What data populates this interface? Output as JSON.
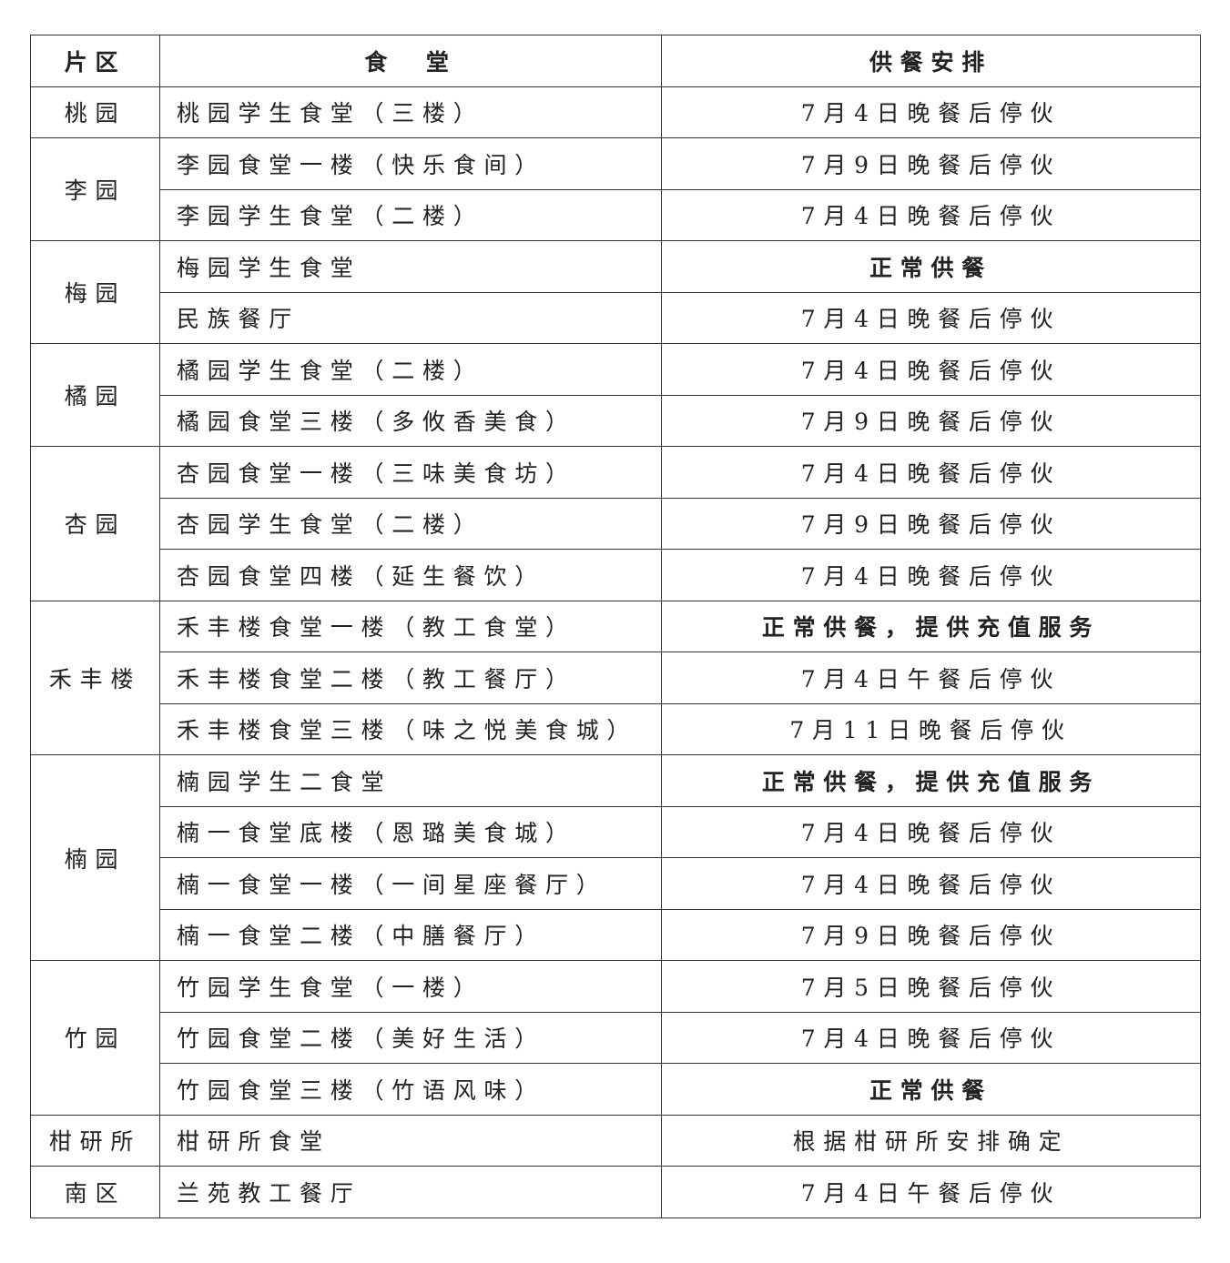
{
  "table": {
    "header": [
      "片区",
      "食　堂",
      "供餐安排"
    ],
    "groups": [
      {
        "area": "桃园",
        "rows": [
          {
            "canteen": "桃园学生食堂（三楼）",
            "schedule": "7月4日晚餐后停伙"
          }
        ]
      },
      {
        "area": "李园",
        "rows": [
          {
            "canteen": "李园食堂一楼（快乐食间）",
            "schedule": "7月9日晚餐后停伙"
          },
          {
            "canteen": "李园学生食堂（二楼）",
            "schedule": "7月4日晚餐后停伙"
          }
        ]
      },
      {
        "area": "梅园",
        "rows": [
          {
            "canteen": "梅园学生食堂",
            "schedule": "正常供餐",
            "bold": true
          },
          {
            "canteen": "民族餐厅",
            "schedule": "7月4日晚餐后停伙"
          }
        ]
      },
      {
        "area": "橘园",
        "rows": [
          {
            "canteen": "橘园学生食堂（二楼）",
            "schedule": "7月4日晚餐后停伙"
          },
          {
            "canteen": "橘园食堂三楼（多攸香美食）",
            "schedule": "7月9日晚餐后停伙"
          }
        ]
      },
      {
        "area": "杏园",
        "rows": [
          {
            "canteen": "杏园食堂一楼（三味美食坊）",
            "schedule": "7月4日晚餐后停伙"
          },
          {
            "canteen": "杏园学生食堂（二楼）",
            "schedule": "7月9日晚餐后停伙"
          },
          {
            "canteen": "杏园食堂四楼（延生餐饮）",
            "schedule": "7月4日晚餐后停伙"
          }
        ]
      },
      {
        "area": "禾丰楼",
        "rows": [
          {
            "canteen": "禾丰楼食堂一楼（教工食堂）",
            "schedule": "正常供餐，提供充值服务",
            "bold": true
          },
          {
            "canteen": "禾丰楼食堂二楼（教工餐厅）",
            "schedule": "7月4日午餐后停伙"
          },
          {
            "canteen": "禾丰楼食堂三楼（味之悦美食城）",
            "schedule": "7月11日晚餐后停伙"
          }
        ]
      },
      {
        "area": "楠园",
        "rows": [
          {
            "canteen": "楠园学生二食堂",
            "schedule": "正常供餐，提供充值服务",
            "bold": true
          },
          {
            "canteen": "楠一食堂底楼（恩璐美食城）",
            "schedule": "7月4日晚餐后停伙"
          },
          {
            "canteen": "楠一食堂一楼（一间星座餐厅）",
            "schedule": "7月4日晚餐后停伙"
          },
          {
            "canteen": "楠一食堂二楼（中膳餐厅）",
            "schedule": "7月9日晚餐后停伙"
          }
        ]
      },
      {
        "area": "竹园",
        "rows": [
          {
            "canteen": "竹园学生食堂（一楼）",
            "schedule": "7月5日晚餐后停伙"
          },
          {
            "canteen": "竹园食堂二楼（美好生活）",
            "schedule": "7月4日晚餐后停伙"
          },
          {
            "canteen": "竹园食堂三楼（竹语风味）",
            "schedule": "正常供餐",
            "bold": true
          }
        ]
      },
      {
        "area": "柑研所",
        "rows": [
          {
            "canteen": "柑研所食堂",
            "schedule": "根据柑研所安排确定"
          }
        ]
      },
      {
        "area": "南区",
        "rows": [
          {
            "canteen": "兰苑教工餐厅",
            "schedule": "7月4日午餐后停伙"
          }
        ]
      }
    ]
  }
}
